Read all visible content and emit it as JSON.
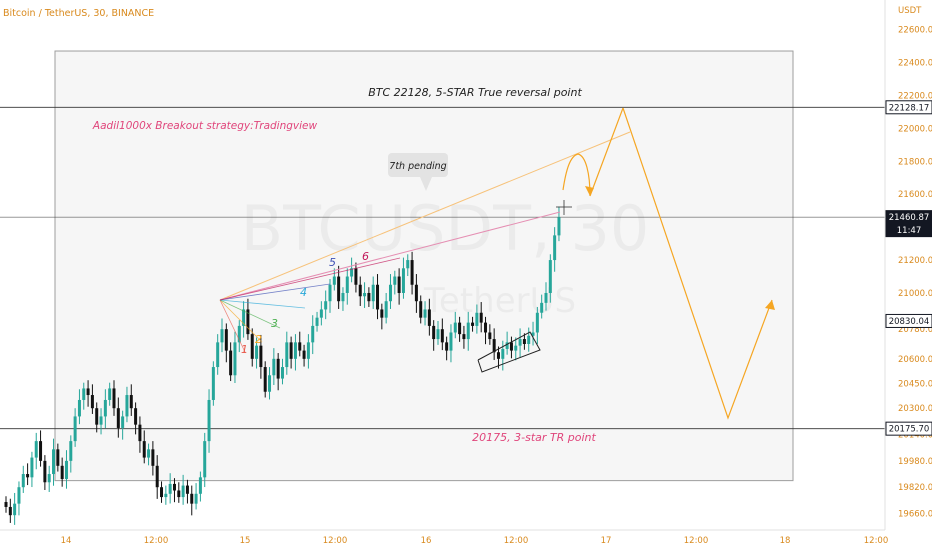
{
  "header": {
    "symbol_title": "Bitcoin / TetherUS, 30, BINANCE",
    "currency": "USDT"
  },
  "watermark": {
    "symbol": "BTCUSDT, 30",
    "name": "TetherUS"
  },
  "colors": {
    "bull": "#26a69a",
    "bear": "#111111",
    "accent_orange": "#f5a623",
    "annotation_pink": "#e0457b",
    "pink_line": "#e58fb3",
    "orange_line": "#f7c27a",
    "tick_orange": "#d98a1e",
    "level_line": "#333333"
  },
  "chart_data": {
    "type": "candlestick",
    "title": "Bitcoin / TetherUS, 30, BINANCE",
    "xlabel": "",
    "ylabel": "USDT",
    "ylim": [
      19560,
      22780
    ],
    "grid": false,
    "x_ticks": [
      "14",
      "12:00",
      "15",
      "12:00",
      "16",
      "12:00",
      "17",
      "12:00",
      "18",
      "12:00"
    ],
    "y_ticks": [
      19660,
      19820,
      19980,
      20140,
      20300,
      20450,
      20600,
      20780,
      21000,
      21200,
      21400,
      21600,
      21800,
      22000,
      22200,
      22400,
      22600
    ],
    "price_labels": [
      {
        "value": 22128.17,
        "text": "22128.17",
        "style": "outline"
      },
      {
        "value": 21460.87,
        "text": "21460.87",
        "sub": "11:47",
        "style": "dark"
      },
      {
        "value": 20830.04,
        "text": "20830.04",
        "style": "outline"
      },
      {
        "value": 20175.7,
        "text": "20175.70",
        "style": "outline"
      }
    ],
    "levels": [
      22128.17,
      21460.87,
      20175.7
    ],
    "box": {
      "x_start": 55,
      "x_end": 793,
      "y_top": 22470,
      "y_bottom": 19860
    },
    "closes": [
      19700,
      19650,
      19720,
      19820,
      19900,
      19880,
      20000,
      20100,
      19980,
      19850,
      19900,
      20050,
      19950,
      19870,
      19980,
      20100,
      20250,
      20350,
      20420,
      20380,
      20300,
      20200,
      20250,
      20350,
      20420,
      20300,
      20180,
      20250,
      20380,
      20300,
      20200,
      20100,
      20000,
      20050,
      19950,
      19820,
      19760,
      19780,
      19840,
      19800,
      19760,
      19830,
      19780,
      19720,
      19780,
      19880,
      20100,
      20350,
      20550,
      20700,
      20780,
      20650,
      20500,
      20700,
      20800,
      20900,
      20750,
      20600,
      20680,
      20550,
      20400,
      20500,
      20600,
      20480,
      20550,
      20700,
      20600,
      20700,
      20650,
      20600,
      20700,
      20800,
      20850,
      20900,
      20950,
      21050,
      21100,
      20950,
      21000,
      21100,
      21150,
      21050,
      20980,
      21000,
      20950,
      21050,
      20900,
      20850,
      20950,
      21050,
      21100,
      21000,
      21150,
      21200,
      21050,
      20950,
      20850,
      20900,
      20800,
      20720,
      20780,
      20700,
      20650,
      20760,
      20820,
      20750,
      20720,
      20820,
      20800,
      20880,
      20820,
      20760,
      20720,
      20640,
      20600,
      20660,
      20700,
      20650,
      20680,
      20720,
      20690,
      20740,
      20760,
      20880,
      20940,
      21000,
      21200,
      21350,
      21460
    ],
    "annotations": {
      "resistance_label": "BTC 22128, 5-STAR True reversal point",
      "support_label": "20175, 3-star TR point",
      "strategy_label": "Aadil1000x Breakout strategy:Tradingview",
      "pending_callout": "7th pending",
      "fan_numbers": [
        {
          "text": "1",
          "color": "#e8584a"
        },
        {
          "text": "2",
          "color": "#f5a623"
        },
        {
          "text": "3",
          "color": "#4caf50"
        },
        {
          "text": "4",
          "color": "#29a8d8"
        },
        {
          "text": "5",
          "color": "#3f51b5"
        },
        {
          "text": "6",
          "color": "#c2185b"
        }
      ]
    }
  }
}
